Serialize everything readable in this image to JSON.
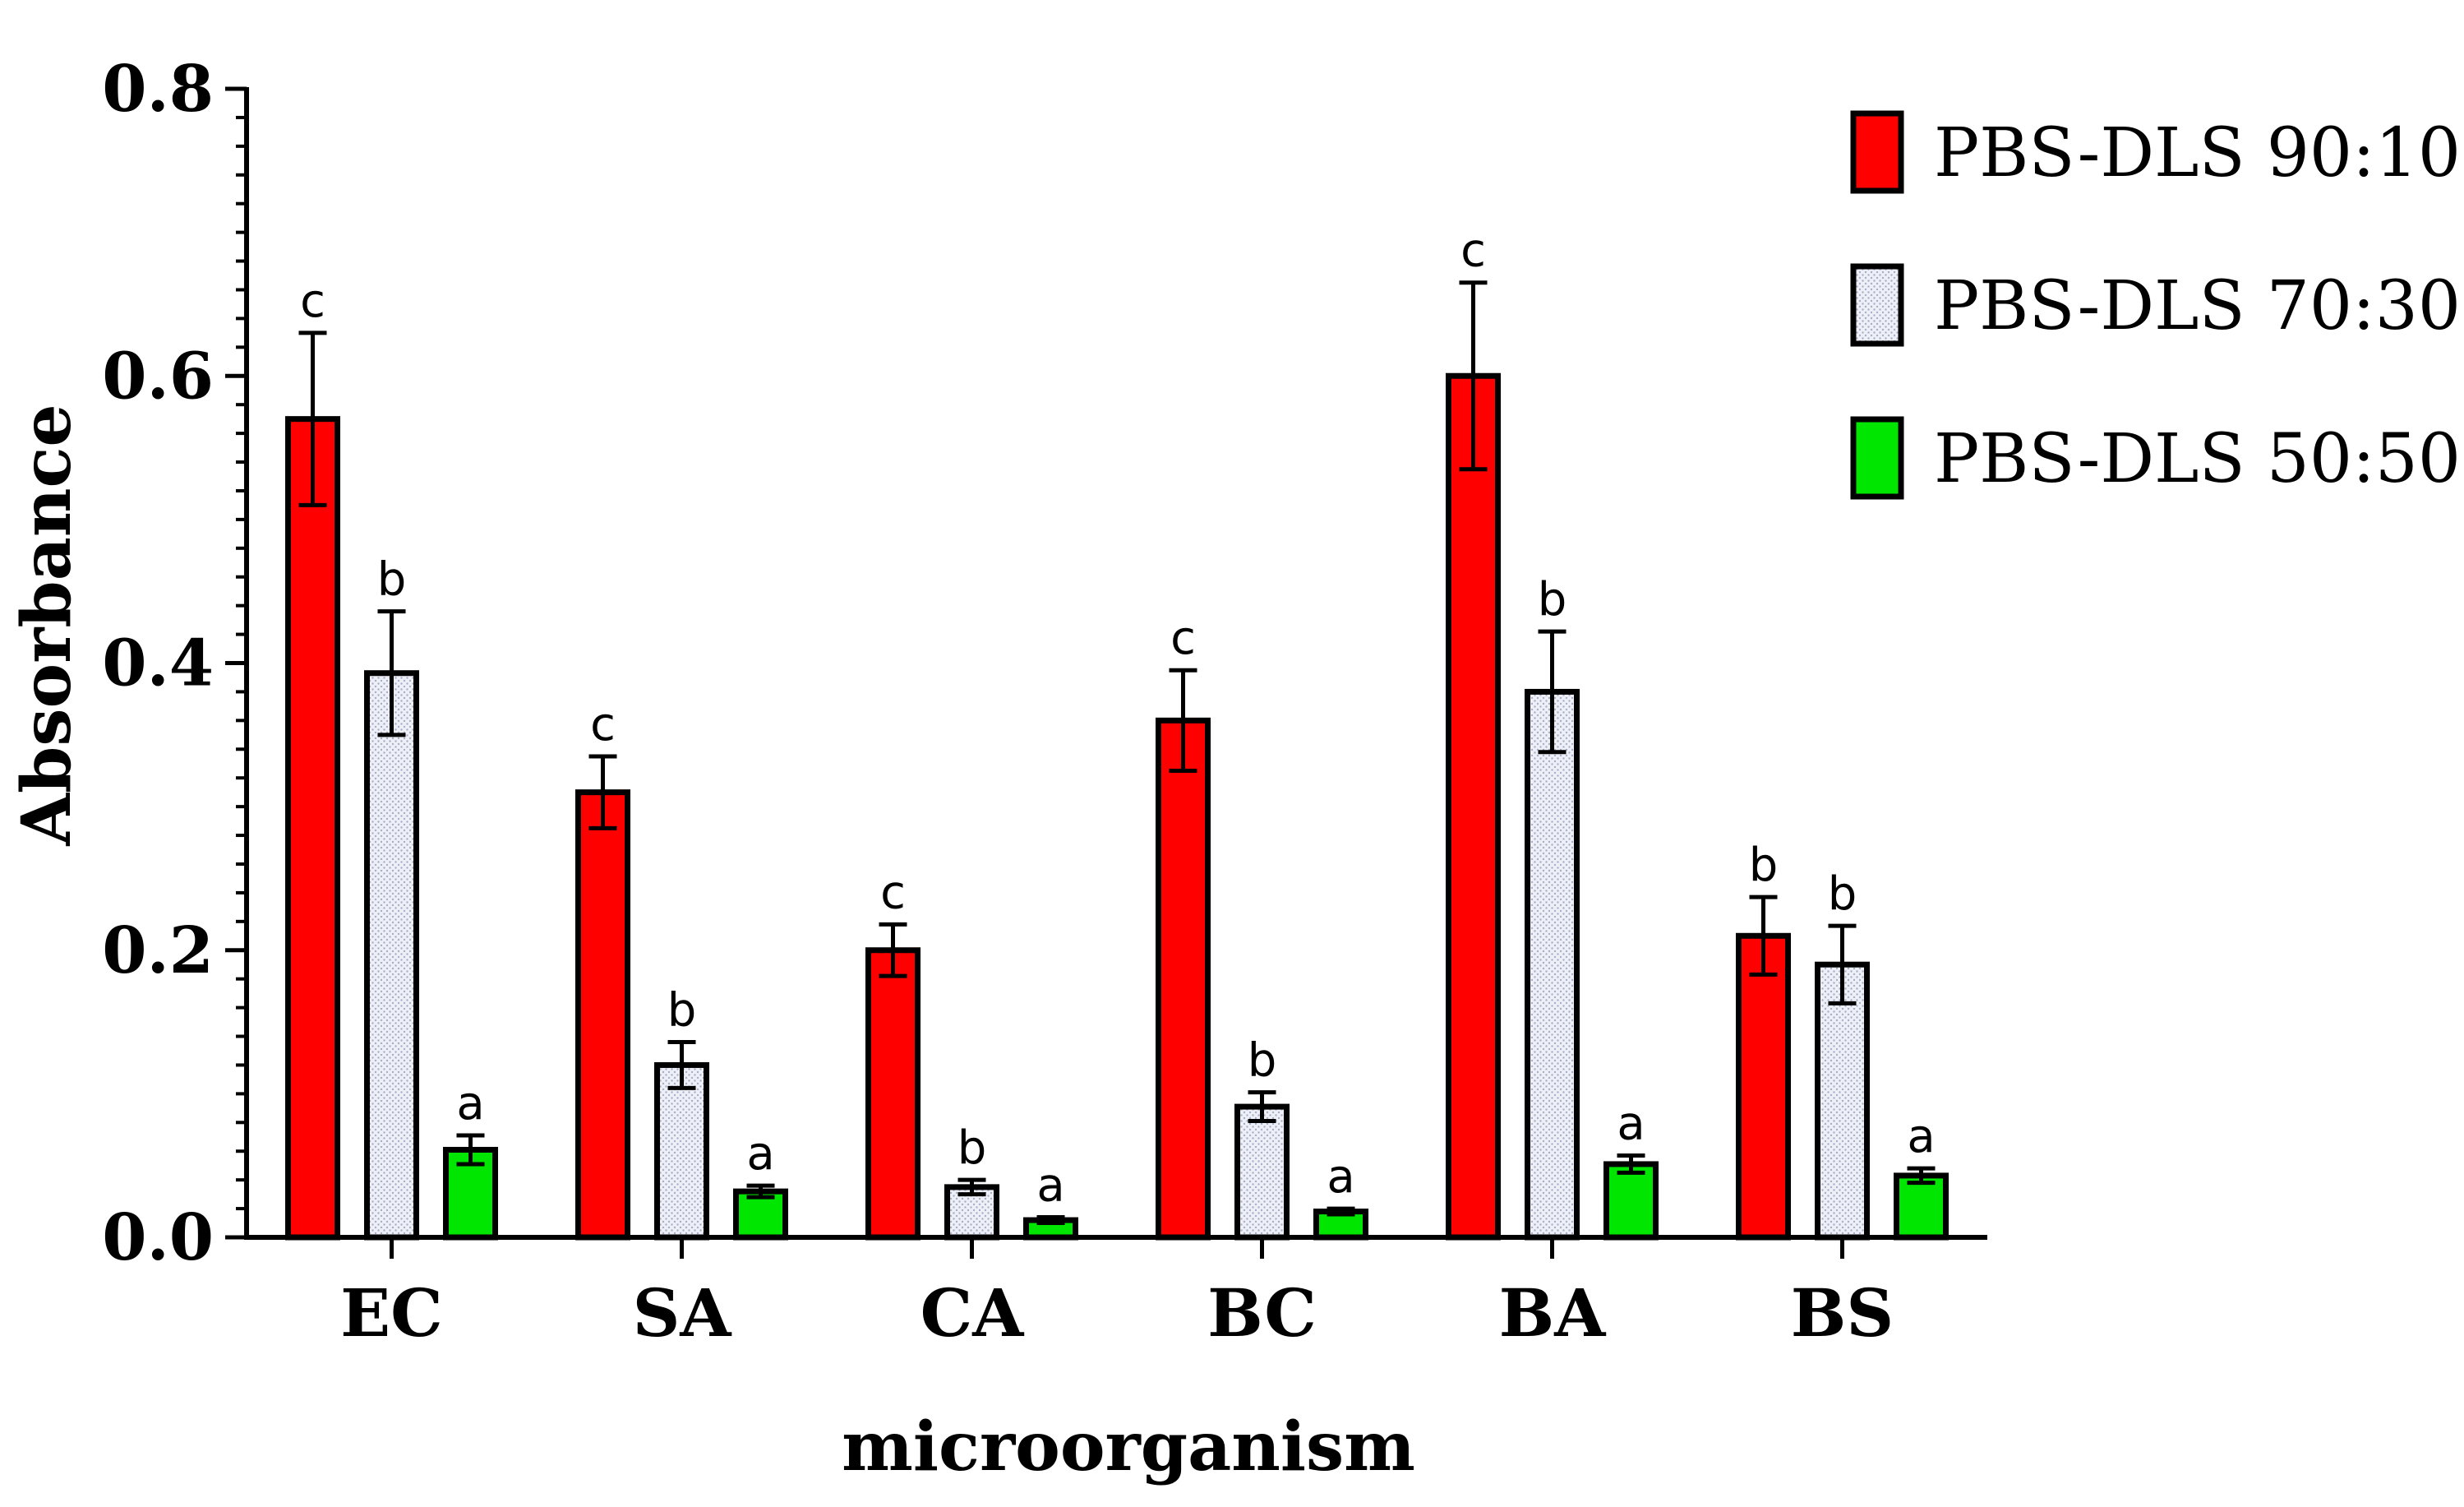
{
  "chart_data": {
    "type": "bar",
    "title": "",
    "xlabel": "microorganism",
    "ylabel": "Absorbance",
    "ylim": [
      0,
      0.8
    ],
    "y_ticks": [
      "0.0",
      "0.2",
      "0.4",
      "0.6",
      "0.8"
    ],
    "y_tick_values": [
      0,
      0.2,
      0.4,
      0.6,
      0.8
    ],
    "categories": [
      "EC",
      "SA",
      "CA",
      "BC",
      "BA",
      "BS"
    ],
    "legend_position": "top-right",
    "series": [
      {
        "name": "PBS-DLS 90:10",
        "color": "#ff0000",
        "pattern": "solid",
        "values": [
          0.57,
          0.31,
          0.2,
          0.36,
          0.6,
          0.21
        ],
        "errors": [
          0.06,
          0.025,
          0.018,
          0.035,
          0.065,
          0.027
        ],
        "labels": [
          "c",
          "c",
          "c",
          "c",
          "c",
          "b"
        ]
      },
      {
        "name": "PBS-DLS 70:30",
        "color": "#e6e8f2",
        "pattern": "dotted",
        "values": [
          0.393,
          0.12,
          0.035,
          0.091,
          0.38,
          0.19
        ],
        "errors": [
          0.043,
          0.016,
          0.005,
          0.01,
          0.042,
          0.027
        ],
        "labels": [
          "b",
          "b",
          "b",
          "b",
          "b",
          "b"
        ]
      },
      {
        "name": "PBS-DLS 50:50",
        "color": "#00e600",
        "pattern": "solid",
        "values": [
          0.061,
          0.032,
          0.012,
          0.018,
          0.051,
          0.043
        ],
        "errors": [
          0.01,
          0.004,
          0.002,
          0.002,
          0.006,
          0.005
        ],
        "labels": [
          "a",
          "a",
          "a",
          "a",
          "a",
          "a"
        ]
      }
    ]
  }
}
